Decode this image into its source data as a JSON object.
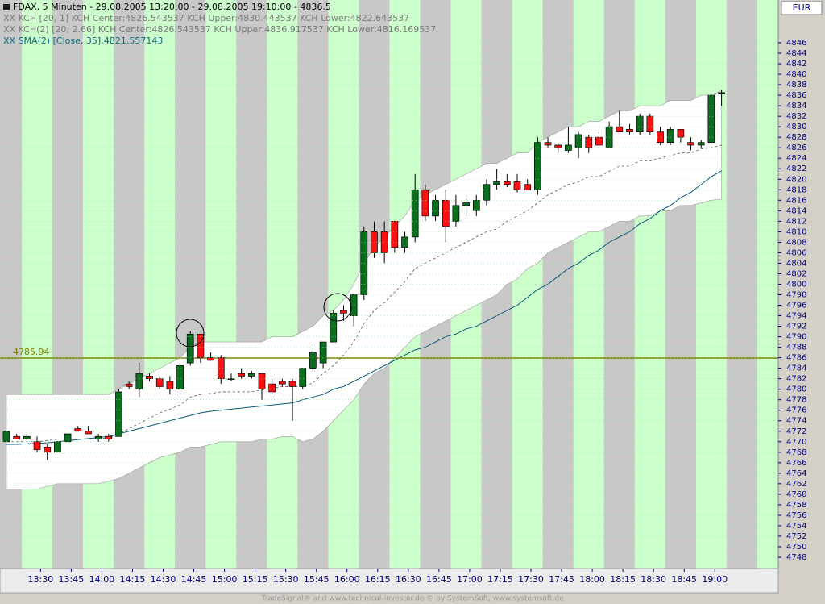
{
  "chart_data": {
    "type": "candlestick",
    "title": "FDAX, 5 Minuten - 29.08.2005 13:20:00 - 29.08.2005 19:10:00 - 4836.5",
    "legend": [
      "XX KCH [20, 1] KCH Center:4826.543537 KCH Upper:4830.443537 KCH Lower:4822.643537",
      "XX KCH(2) [20, 2.66] KCH Center:4826.543537 KCH Upper:4836.917537 KCH Lower:4816.169537",
      "XX SMA(2) [Close, 35]:4821.557143"
    ],
    "currency": "EUR",
    "footer": "TradeSignal® and www.technical-investor.de © by  SystemSoft, www.systemsoft.de",
    "categories": [
      null,
      null,
      "13:30",
      null,
      null,
      "13:45",
      null,
      null,
      "14:00",
      null,
      null,
      "14:15",
      null,
      null,
      "14:30",
      null,
      null,
      "14:45",
      null,
      null,
      "15:00",
      null,
      null,
      "15:15",
      null,
      null,
      "15:30",
      null,
      null,
      "15:45",
      null,
      null,
      "16:00",
      null,
      null,
      "16:15",
      null,
      null,
      "16:30",
      null,
      null,
      "16:45",
      null,
      null,
      "17:00",
      null,
      null,
      "17:15",
      null,
      null,
      "17:30",
      null,
      null,
      "17:45",
      null,
      null,
      "18:00",
      null,
      null,
      "18:15",
      null,
      null,
      "18:30",
      null,
      null,
      "18:45",
      null,
      null,
      "19:00",
      null,
      null
    ],
    "open": [
      4770,
      4771,
      4770.5,
      4770,
      4769,
      4768,
      4770,
      4772.5,
      4772,
      4770.5,
      4771,
      4771,
      4781,
      4780,
      4782.5,
      4782,
      4781.5,
      4780,
      4785,
      4790.5,
      4786,
      4786,
      4782,
      4783,
      4782.5,
      4783,
      4781,
      4781.5,
      4781.5,
      4780.5,
      4784,
      4785,
      4789,
      4795,
      4794,
      4798,
      4810,
      4810,
      4812,
      4807,
      4809,
      4818,
      4813,
      4816,
      4812,
      4815,
      4814,
      4816,
      4819,
      4819.5,
      4819.5,
      4819,
      4818,
      4827,
      4826.5,
      4825.5,
      4826,
      4828,
      4828,
      4826,
      4830,
      4829.5,
      4829,
      4832,
      4829,
      4827,
      4829.5,
      4827,
      4826.5,
      4827,
      4836.5
    ],
    "high": [
      4772,
      4771.5,
      4771.5,
      4771,
      4769.5,
      4770,
      4771.5,
      4773,
      4773,
      4771.5,
      4771.5,
      4780,
      4781.5,
      4785,
      4783,
      4782.5,
      4782.5,
      4785,
      4791,
      4790.5,
      4787,
      4786.5,
      4783,
      4784,
      4783.5,
      4783,
      4782,
      4782,
      4782,
      4784,
      4788,
      4789,
      4795,
      4796,
      4798,
      4811,
      4812,
      4812,
      4812,
      4810,
      4821,
      4819,
      4817,
      4818,
      4817,
      4817,
      4817,
      4820,
      4822,
      4821,
      4821,
      4820,
      4828,
      4828,
      4827,
      4830,
      4829,
      4828.5,
      4829,
      4831,
      4833,
      4830.5,
      4832.5,
      4832.5,
      4830,
      4830,
      4829.5,
      4828,
      4827.5,
      4836,
      4837
    ],
    "low": [
      4770,
      4770.5,
      4770,
      4768,
      4766.5,
      4768,
      4770,
      4772,
      4771.5,
      4770,
      4770,
      4771,
      4780,
      4778.5,
      4781.5,
      4780,
      4779,
      4779,
      4784.5,
      4785,
      4785.5,
      4781,
      4781.5,
      4782,
      4782,
      4778,
      4779,
      4780.5,
      4774,
      4780,
      4783,
      4784,
      4789,
      4793,
      4792,
      4797,
      4805,
      4804,
      4806,
      4806,
      4808,
      4812,
      4812,
      4808,
      4811,
      4813,
      4813,
      4815,
      4818,
      4818.5,
      4817.5,
      4818,
      4817,
      4826,
      4825,
      4825,
      4824,
      4825,
      4826,
      4826,
      4829,
      4828.5,
      4828.5,
      4828.5,
      4826.5,
      4826.5,
      4827,
      4825.5,
      4826,
      4827,
      4834
    ],
    "close": [
      4772,
      4770.5,
      4771,
      4768.5,
      4768,
      4770,
      4771.5,
      4772,
      4771.5,
      4771,
      4770.5,
      4779.5,
      4780.5,
      4783,
      4782,
      4780.5,
      4780,
      4784.5,
      4790.5,
      4786,
      4785.5,
      4782,
      4782,
      4782.5,
      4783,
      4780,
      4779.5,
      4781,
      4780.5,
      4784,
      4787,
      4789,
      4794.5,
      4794.5,
      4798,
      4810,
      4806,
      4806,
      4807,
      4809,
      4818,
      4813,
      4816,
      4811,
      4815,
      4815.5,
      4816,
      4819,
      4819.5,
      4819,
      4818,
      4818,
      4827,
      4826.5,
      4826,
      4826.5,
      4828.5,
      4826,
      4826.5,
      4830,
      4829,
      4829,
      4832,
      4829,
      4827,
      4829.5,
      4828,
      4826.5,
      4827,
      4836,
      4836.5
    ],
    "up_color": "#0a6e1e",
    "down_color": "#ff1010",
    "overlays": {
      "kch_upper": [
        4779,
        4779,
        4779,
        4779,
        4779,
        4779,
        4779,
        4779,
        4779,
        4779,
        4779,
        4780,
        4781,
        4782,
        4783,
        4784,
        4785,
        4786,
        4788,
        4789,
        4789,
        4789,
        4789,
        4789,
        4789,
        4789,
        4790,
        4790,
        4790,
        4791,
        4792,
        4794,
        4795,
        4797,
        4800,
        4804,
        4807,
        4809,
        4811,
        4813,
        4816,
        4817,
        4818,
        4819,
        4820,
        4821,
        4822,
        4823,
        4823,
        4824,
        4825,
        4825,
        4827,
        4828,
        4829,
        4830,
        4830,
        4831,
        4831,
        4832,
        4833,
        4833,
        4834,
        4834,
        4834,
        4835,
        4835,
        4835,
        4836,
        4836,
        4836.9
      ],
      "kch_lower": [
        4761,
        4761,
        4761,
        4761,
        4761.5,
        4762,
        4762,
        4762,
        4762,
        4762,
        4762.5,
        4763,
        4764,
        4765,
        4766,
        4767,
        4767.5,
        4768,
        4769,
        4769,
        4769.5,
        4770,
        4770,
        4770,
        4770,
        4770.5,
        4770.5,
        4771,
        4771,
        4770,
        4770.5,
        4772,
        4774,
        4776,
        4778,
        4781,
        4783,
        4784,
        4786,
        4788,
        4790,
        4791,
        4792,
        4793,
        4794,
        4795,
        4796,
        4797,
        4798,
        4800,
        4801,
        4803,
        4804,
        4806,
        4807,
        4808,
        4809,
        4810,
        4810,
        4811,
        4812,
        4812,
        4813,
        4813,
        4814,
        4814,
        4815,
        4815,
        4815.5,
        4816,
        4816.2
      ],
      "kch_center": [
        4770,
        4770,
        4770,
        4770,
        4770.2,
        4770.5,
        4770.5,
        4770.5,
        4770.5,
        4770.5,
        4770.8,
        4771.5,
        4772.5,
        4773.5,
        4774.5,
        4775.5,
        4776.2,
        4777,
        4778.5,
        4779,
        4779.2,
        4779.5,
        4779.5,
        4779.5,
        4779.5,
        4779.8,
        4780.2,
        4780.5,
        4780.5,
        4780.5,
        4781.2,
        4783,
        4784.5,
        4786.5,
        4789,
        4792.5,
        4795,
        4796.5,
        4798.5,
        4800.5,
        4803,
        4804,
        4805,
        4806,
        4807,
        4808,
        4809,
        4810,
        4810.5,
        4812,
        4813,
        4814,
        4815.5,
        4817,
        4818,
        4819,
        4819.5,
        4820.5,
        4820.5,
        4821.5,
        4822.5,
        4822.5,
        4823.5,
        4823.5,
        4824,
        4824.5,
        4825,
        4825,
        4825.8,
        4826,
        4826.5
      ],
      "sma": [
        4769.5,
        4769.5,
        4769.6,
        4769.7,
        4769.8,
        4770,
        4770.2,
        4770.4,
        4770.6,
        4770.8,
        4771,
        4771.5,
        4772,
        4772.5,
        4773,
        4773.5,
        4774,
        4774.5,
        4775,
        4775.5,
        4775.8,
        4776,
        4776.2,
        4776.4,
        4776.6,
        4776.8,
        4777,
        4777.2,
        4777.4,
        4778,
        4778.5,
        4779,
        4780,
        4780.5,
        4781.5,
        4782.5,
        4783.5,
        4784.5,
        4785.5,
        4786.5,
        4787.5,
        4788,
        4789,
        4790,
        4790.5,
        4791.5,
        4792,
        4793,
        4794,
        4795,
        4796,
        4797.5,
        4799,
        4800,
        4801.5,
        4803,
        4804,
        4805.5,
        4806.5,
        4808,
        4809,
        4810,
        4811.5,
        4812.5,
        4814,
        4815,
        4816.5,
        4817.5,
        4819,
        4820.5,
        4821.6
      ],
      "band_color": "#ffffff",
      "center_color": "#555555",
      "sma_color": "#0a5a78"
    },
    "hline": {
      "value": 4785.94,
      "color": "#808000"
    },
    "ylim": [
      4745.85,
      4854.14
    ],
    "yticks": [
      4748,
      4750,
      4752,
      4754,
      4756,
      4758,
      4760,
      4762,
      4764,
      4766,
      4768,
      4770,
      4772,
      4774,
      4776,
      4778,
      4780,
      4782,
      4784,
      4786,
      4788,
      4790,
      4792,
      4794,
      4796,
      4798,
      4800,
      4802,
      4804,
      4806,
      4808,
      4810,
      4812,
      4814,
      4816,
      4818,
      4820,
      4822,
      4824,
      4826,
      4828,
      4830,
      4832,
      4834,
      4836,
      4838,
      4840,
      4842,
      4844,
      4846
    ]
  }
}
